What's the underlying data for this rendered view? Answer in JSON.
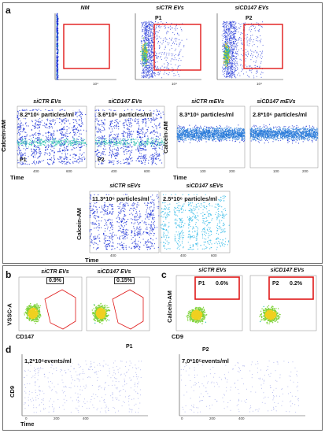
{
  "panels": {
    "a": {
      "letter": "a",
      "top_titles": [
        "NM",
        "siCTR EVs",
        "siCD147 EVs"
      ],
      "gates": [
        "P1",
        "P2"
      ],
      "tick_1e4": "10⁴",
      "mid_titles": [
        "siCTR EVs",
        "siCD147 EVs",
        "siCTR mEVs",
        "siCD147 mEVs"
      ],
      "mid_counts": [
        "8.2*10⁶ particles/ml",
        "3.6*10⁶ particles/ml",
        "8.3*10⁶ particles/ml",
        "2.8*10⁶ particles/ml"
      ],
      "mid_gate_labels": [
        "P1",
        "P2"
      ],
      "bottom_titles": [
        "siCTR sEVs",
        "siCD147 sEVs"
      ],
      "bottom_counts": [
        "11.3*10⁶ particles/ml",
        "2.5*10⁶ particles/ml"
      ],
      "ylabel": "Calcein-AM",
      "xlabel": "Time",
      "ticks_time_a": [
        "400",
        "600"
      ],
      "ticks_time_b": [
        "100",
        "200"
      ]
    },
    "b": {
      "letter": "b",
      "titles": [
        "siCTR EVs",
        "siCD147 EVs"
      ],
      "pcts": [
        "0.9%",
        "0.15%"
      ],
      "ylabel": "VSSC-A",
      "xlabel": "CD147"
    },
    "c": {
      "letter": "c",
      "titles": [
        "siCTR EVs",
        "siCD147 EVs"
      ],
      "gates": [
        "P1",
        "P2"
      ],
      "pcts": [
        "0.6%",
        "0.2%"
      ],
      "ylabel": "Calcein-AM",
      "xlabel": "CD9"
    },
    "d": {
      "letter": "d",
      "gates": [
        "P1",
        "P2"
      ],
      "counts": [
        "1,2*10⁶events/ml",
        "7,0*10⁵events/ml"
      ],
      "ylabel": "CD9",
      "xlabel": "Time",
      "ticks": [
        "0",
        "200",
        "400"
      ]
    }
  },
  "colors": {
    "gate_red": "#e01818",
    "dots_blue": "#1a2fd6",
    "dots_cyan": "#29b6e6",
    "frame": "#6b6b6b"
  }
}
